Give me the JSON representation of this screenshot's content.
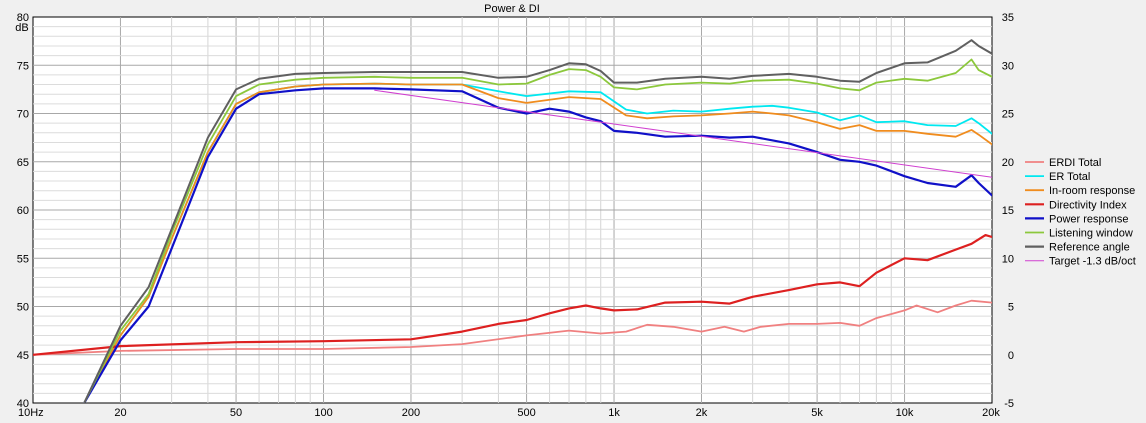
{
  "chart_data": {
    "type": "line",
    "title": "Power & DI",
    "ylabel": "dB",
    "x_scale": "log",
    "xlim": [
      10,
      20000
    ],
    "ylim": [
      40,
      80
    ],
    "y2lim": [
      -5,
      35
    ],
    "grid": true,
    "legend_position": "right",
    "x_ticks": [
      {
        "value": 10,
        "label": "10Hz"
      },
      {
        "value": 20,
        "label": "20"
      },
      {
        "value": 50,
        "label": "50"
      },
      {
        "value": 100,
        "label": "100"
      },
      {
        "value": 200,
        "label": "200"
      },
      {
        "value": 500,
        "label": "500"
      },
      {
        "value": 1000,
        "label": "1k"
      },
      {
        "value": 2000,
        "label": "2k"
      },
      {
        "value": 5000,
        "label": "5k"
      },
      {
        "value": 10000,
        "label": "10k"
      },
      {
        "value": 20000,
        "label": "20k"
      }
    ],
    "y_ticks": [
      40,
      45,
      50,
      55,
      60,
      65,
      70,
      75,
      80
    ],
    "y2_ticks": [
      -5,
      0,
      5,
      10,
      15,
      20,
      25,
      30,
      35
    ],
    "series": [
      {
        "name": "ERDI Total",
        "color": "#f08080",
        "axis": "right",
        "width": 1.8,
        "x": [
          10,
          20,
          50,
          100,
          200,
          300,
          500,
          700,
          900,
          1100,
          1300,
          1600,
          2000,
          2400,
          2800,
          3200,
          4000,
          5000,
          6000,
          7000,
          8000,
          10000,
          11000,
          13000,
          15000,
          17000,
          20000
        ],
        "y": [
          0,
          0.4,
          0.6,
          0.6,
          0.8,
          1.1,
          2,
          2.5,
          2.2,
          2.4,
          3.1,
          2.9,
          2.4,
          2.9,
          2.4,
          2.9,
          3.2,
          3.2,
          3.3,
          3.0,
          3.8,
          4.6,
          5.1,
          4.4,
          5.1,
          5.6,
          5.4
        ]
      },
      {
        "name": "ER Total",
        "color": "#00e8f0",
        "axis": "left",
        "width": 1.8,
        "x": [
          15,
          20,
          25,
          30,
          40,
          50,
          60,
          80,
          100,
          150,
          200,
          300,
          400,
          500,
          700,
          900,
          1100,
          1300,
          1600,
          2000,
          2500,
          3000,
          3500,
          4000,
          5000,
          6000,
          7000,
          8000,
          10000,
          12000,
          15000,
          17000,
          18000,
          20000
        ],
        "y": [
          40,
          47,
          51,
          57,
          66,
          71,
          72.2,
          72.8,
          73,
          73.1,
          73,
          73,
          72.3,
          71.8,
          72.3,
          72.2,
          70.4,
          70,
          70.3,
          70.2,
          70.5,
          70.7,
          70.8,
          70.6,
          70.1,
          69.3,
          69.8,
          69.1,
          69.2,
          68.8,
          68.7,
          69.5,
          69.0,
          67.9
        ]
      },
      {
        "name": "In-room response",
        "color": "#f08c1e",
        "axis": "left",
        "width": 1.8,
        "x": [
          15,
          20,
          25,
          30,
          40,
          50,
          60,
          80,
          100,
          150,
          200,
          300,
          400,
          500,
          700,
          900,
          1100,
          1300,
          1600,
          2000,
          2500,
          3000,
          3500,
          4000,
          5000,
          6000,
          7000,
          8000,
          10000,
          12000,
          15000,
          17000,
          18000,
          20000
        ],
        "y": [
          40,
          47,
          51,
          57,
          66,
          71,
          72.2,
          72.8,
          73,
          73.1,
          73,
          73,
          71.6,
          71.1,
          71.7,
          71.5,
          69.8,
          69.5,
          69.7,
          69.8,
          70.0,
          70.2,
          70.0,
          69.8,
          69.1,
          68.4,
          68.8,
          68.2,
          68.2,
          67.9,
          67.6,
          68.3,
          67.8,
          66.8
        ]
      },
      {
        "name": "Directivity Index",
        "color": "#dd2020",
        "axis": "right",
        "width": 2.2,
        "x": [
          10,
          20,
          50,
          100,
          200,
          300,
          400,
          500,
          600,
          700,
          800,
          900,
          1000,
          1200,
          1500,
          2000,
          2500,
          3000,
          4000,
          5000,
          6000,
          7000,
          8000,
          10000,
          12000,
          15000,
          17000,
          19000,
          20000
        ],
        "y": [
          0,
          0.9,
          1.3,
          1.4,
          1.6,
          2.4,
          3.2,
          3.6,
          4.3,
          4.8,
          5.1,
          4.8,
          4.6,
          4.7,
          5.4,
          5.5,
          5.3,
          6,
          6.7,
          7.3,
          7.5,
          7.1,
          8.5,
          10,
          9.8,
          10.9,
          11.5,
          12.4,
          12.2
        ]
      },
      {
        "name": "Power response",
        "color": "#1010c8",
        "axis": "left",
        "width": 2.2,
        "x": [
          15,
          20,
          25,
          30,
          40,
          50,
          60,
          80,
          100,
          150,
          200,
          300,
          400,
          500,
          600,
          700,
          800,
          900,
          1000,
          1200,
          1500,
          2000,
          2500,
          3000,
          4000,
          5000,
          6000,
          7000,
          8000,
          10000,
          12000,
          15000,
          17000,
          18000,
          20000
        ],
        "y": [
          40,
          46.5,
          50,
          56,
          65.5,
          70.5,
          72,
          72.4,
          72.6,
          72.6,
          72.5,
          72.3,
          70.6,
          70,
          70.5,
          70.2,
          69.6,
          69.2,
          68.2,
          68.0,
          67.6,
          67.7,
          67.5,
          67.6,
          66.9,
          66.0,
          65.2,
          65.0,
          64.6,
          63.5,
          62.8,
          62.4,
          63.6,
          62.8,
          61.5
        ]
      },
      {
        "name": "Listening window",
        "color": "#8cc83c",
        "axis": "left",
        "width": 1.8,
        "x": [
          15,
          20,
          25,
          30,
          40,
          50,
          60,
          80,
          100,
          150,
          200,
          300,
          400,
          500,
          600,
          700,
          800,
          900,
          1000,
          1200,
          1500,
          2000,
          2500,
          3000,
          4000,
          5000,
          6000,
          7000,
          8000,
          10000,
          12000,
          15000,
          17000,
          18000,
          20000
        ],
        "y": [
          40,
          47.5,
          51.3,
          57.6,
          66.8,
          71.8,
          73,
          73.5,
          73.7,
          73.8,
          73.7,
          73.7,
          73,
          73.1,
          74,
          74.6,
          74.5,
          73.8,
          72.7,
          72.5,
          73,
          73.2,
          73.1,
          73.4,
          73.5,
          73.1,
          72.6,
          72.4,
          73.2,
          73.6,
          73.4,
          74.2,
          75.6,
          74.5,
          73.8
        ]
      },
      {
        "name": "Reference angle",
        "color": "#606060",
        "axis": "left",
        "width": 2.0,
        "x": [
          15,
          20,
          25,
          30,
          40,
          50,
          60,
          80,
          100,
          150,
          200,
          300,
          400,
          500,
          600,
          700,
          800,
          900,
          1000,
          1200,
          1500,
          2000,
          2500,
          3000,
          4000,
          5000,
          6000,
          7000,
          8000,
          10000,
          12000,
          15000,
          17000,
          18000,
          20000
        ],
        "y": [
          40,
          48,
          52,
          58,
          67.5,
          72.5,
          73.6,
          74.1,
          74.2,
          74.3,
          74.3,
          74.3,
          73.7,
          73.8,
          74.5,
          75.2,
          75.1,
          74.4,
          73.2,
          73.2,
          73.6,
          73.8,
          73.6,
          73.9,
          74.1,
          73.8,
          73.4,
          73.3,
          74.2,
          75.2,
          75.3,
          76.5,
          77.6,
          77.0,
          76.2
        ]
      },
      {
        "name": "Target -1.3 dB/oct",
        "color": "#d040d0",
        "axis": "left",
        "width": 1.0,
        "x": [
          150,
          20000
        ],
        "y": [
          72.4,
          63.4
        ]
      }
    ]
  }
}
